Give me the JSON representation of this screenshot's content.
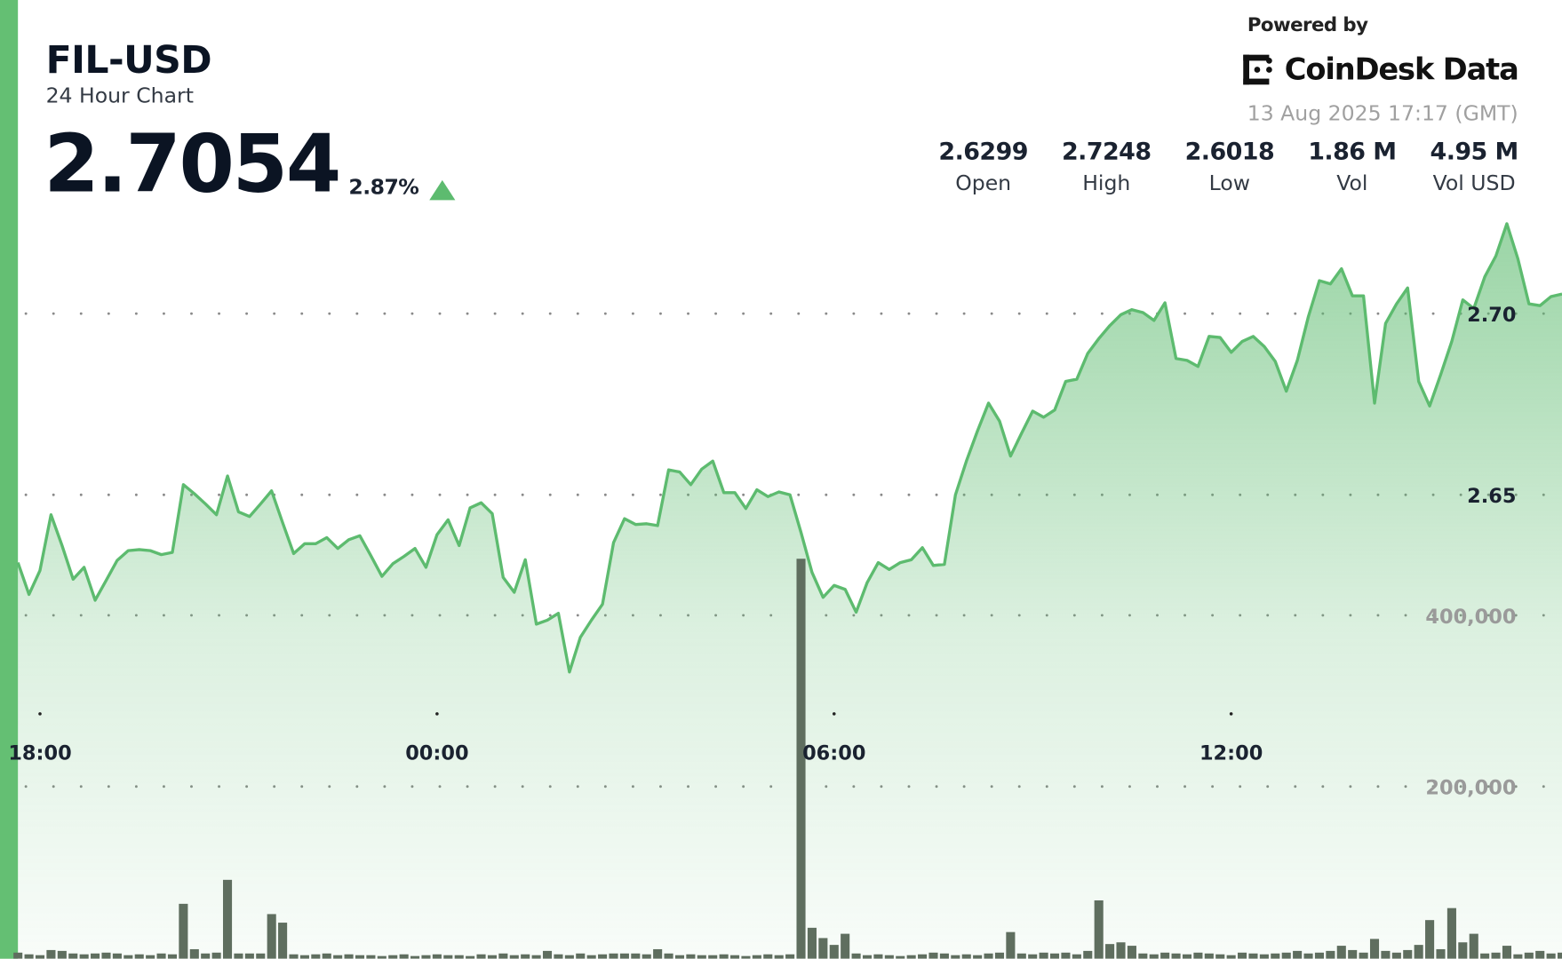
{
  "header": {
    "title": "FIL-USD",
    "subtitle": "24 Hour Chart",
    "price": "2.7054",
    "change_percent": "2.87%",
    "change_direction": "up",
    "powered_by": "Powered by",
    "brand": "CoinDesk Data",
    "timestamp": "13 Aug 2025 17:17 (GMT)"
  },
  "stats": [
    {
      "value": "2.6299",
      "label": "Open"
    },
    {
      "value": "2.7248",
      "label": "High"
    },
    {
      "value": "2.6018",
      "label": "Low"
    },
    {
      "value": "1.86 M",
      "label": "Vol"
    },
    {
      "value": "4.95 M",
      "label": "Vol USD"
    }
  ],
  "colors": {
    "accent": "#64bf73",
    "line": "#5dbb6f",
    "volume": "#5f6e5f",
    "text": "#0b1423"
  },
  "chart_data": {
    "type": "area",
    "grid": "dotted horizontal",
    "price_ticks": [
      2.7,
      2.65
    ],
    "price_tick_labels": [
      "2.70",
      "2.65"
    ],
    "volume_ticks": [
      400000,
      200000
    ],
    "volume_tick_labels": [
      "400,000",
      "200,000"
    ],
    "time_ticks": [
      "18:00",
      "00:00",
      "06:00",
      "12:00"
    ],
    "x": [
      "17:40",
      "17:50",
      "18:00",
      "18:10",
      "18:20",
      "18:30",
      "18:40",
      "18:50",
      "19:00",
      "19:10",
      "19:20",
      "19:30",
      "19:40",
      "19:50",
      "20:00",
      "20:10",
      "20:20",
      "20:30",
      "20:40",
      "20:50",
      "21:00",
      "21:10",
      "21:20",
      "21:30",
      "21:40",
      "21:50",
      "22:00",
      "22:10",
      "22:20",
      "22:30",
      "22:40",
      "22:50",
      "23:00",
      "23:10",
      "23:20",
      "23:30",
      "23:40",
      "23:50",
      "00:00",
      "00:10",
      "00:20",
      "00:30",
      "00:40",
      "00:50",
      "01:00",
      "01:10",
      "01:20",
      "01:30",
      "01:40",
      "01:50",
      "02:00",
      "02:10",
      "02:20",
      "02:30",
      "02:40",
      "02:50",
      "03:00",
      "03:10",
      "03:20",
      "03:30",
      "03:40",
      "03:50",
      "04:00",
      "04:10",
      "04:20",
      "04:30",
      "04:40",
      "04:50",
      "05:00",
      "05:10",
      "05:20",
      "05:30",
      "05:40",
      "05:50",
      "06:00",
      "06:10",
      "06:20",
      "06:30",
      "06:40",
      "06:50",
      "07:00",
      "07:10",
      "07:20",
      "07:30",
      "07:40",
      "07:50",
      "08:00",
      "08:10",
      "08:20",
      "08:30",
      "08:40",
      "08:50",
      "09:00",
      "09:10",
      "09:20",
      "09:30",
      "09:40",
      "09:50",
      "10:00",
      "10:10",
      "10:20",
      "10:30",
      "10:40",
      "10:50",
      "11:00",
      "11:10",
      "11:20",
      "11:30",
      "11:40",
      "11:50",
      "12:00",
      "12:10",
      "12:20",
      "12:30",
      "12:40",
      "12:50",
      "13:00",
      "13:10",
      "13:20",
      "13:30",
      "13:40",
      "13:50",
      "14:00",
      "14:10",
      "14:20",
      "14:30",
      "14:40",
      "14:50",
      "15:00",
      "15:10",
      "15:20",
      "15:30",
      "15:40",
      "15:50",
      "16:00",
      "16:10",
      "16:20",
      "16:30",
      "16:40",
      "16:50",
      "17:00"
    ],
    "price": [
      2.6313,
      2.6225,
      2.6291,
      2.6445,
      2.636,
      2.6267,
      2.63,
      2.6209,
      2.6264,
      2.6319,
      2.6346,
      2.6349,
      2.6346,
      2.6335,
      2.6341,
      2.6528,
      2.6503,
      2.6475,
      2.6445,
      2.6552,
      2.6453,
      2.644,
      2.6475,
      2.6511,
      2.6423,
      2.6338,
      2.6365,
      2.6365,
      2.6382,
      2.6352,
      2.6376,
      2.6387,
      2.6332,
      2.6275,
      2.631,
      2.633,
      2.6352,
      2.63,
      2.639,
      2.6431,
      2.636,
      2.6464,
      2.6478,
      2.6448,
      2.6272,
      2.6231,
      2.6321,
      2.6143,
      2.6154,
      2.6173,
      2.6011,
      2.6107,
      2.6154,
      2.6198,
      2.6368,
      2.6434,
      2.6418,
      2.642,
      2.6415,
      2.6569,
      2.6563,
      2.6528,
      2.6571,
      2.6593,
      2.6506,
      2.6506,
      2.6462,
      2.6514,
      2.6495,
      2.6508,
      2.65,
      2.6396,
      2.6286,
      2.6217,
      2.625,
      2.6239,
      2.6176,
      2.6258,
      2.6313,
      2.6294,
      2.6313,
      2.6321,
      2.6354,
      2.6305,
      2.6308,
      2.65,
      2.6593,
      2.6676,
      2.6753,
      2.6703,
      2.6607,
      2.667,
      2.6731,
      2.6714,
      2.6734,
      2.6813,
      2.6819,
      2.689,
      2.6931,
      2.6967,
      2.6997,
      2.7011,
      2.7003,
      2.6981,
      2.703,
      2.6876,
      2.6871,
      2.6854,
      2.6937,
      2.6934,
      2.6893,
      2.6923,
      2.6937,
      2.6909,
      2.6868,
      2.6786,
      2.6871,
      2.6992,
      2.7091,
      2.7082,
      2.7124,
      2.7049,
      2.7049,
      2.6753,
      2.6973,
      2.7027,
      2.7071,
      2.6813,
      2.6745,
      2.6832,
      2.6923,
      2.7038,
      2.7014,
      2.7102,
      2.7159,
      2.7248,
      2.7151,
      2.7027,
      2.7022,
      2.7047,
      2.7054
    ],
    "volume": [
      6000,
      4000,
      3000,
      9000,
      8000,
      5000,
      4000,
      5000,
      6000,
      5000,
      3000,
      4000,
      3000,
      5000,
      4000,
      63000,
      10000,
      5000,
      6000,
      91000,
      5000,
      5000,
      5000,
      51000,
      41000,
      4000,
      3000,
      4000,
      5000,
      3000,
      4000,
      3000,
      3000,
      2000,
      3000,
      4000,
      2000,
      3000,
      4000,
      3000,
      3000,
      2000,
      4000,
      3000,
      5000,
      3000,
      4000,
      3000,
      8000,
      4000,
      3000,
      5000,
      3000,
      4000,
      5000,
      5000,
      5000,
      4000,
      10000,
      5000,
      3000,
      4000,
      3000,
      3000,
      4000,
      3000,
      2000,
      3000,
      4000,
      3000,
      4000,
      466000,
      35000,
      23000,
      15000,
      28000,
      5000,
      3000,
      4000,
      3000,
      2000,
      3000,
      4000,
      6000,
      5000,
      3000,
      4000,
      3000,
      5000,
      6000,
      30000,
      5000,
      4000,
      6000,
      5000,
      6000,
      4000,
      8000,
      67000,
      16000,
      18000,
      14000,
      5000,
      4000,
      6000,
      5000,
      4000,
      6000,
      5000,
      4000,
      3000,
      6000,
      5000,
      4000,
      5000,
      6000,
      8000,
      5000,
      6000,
      8000,
      14000,
      9000,
      6000,
      22000,
      8000,
      6000,
      9000,
      15000,
      44000,
      10000,
      58000,
      18000,
      28000,
      5000,
      6000,
      14000,
      4000,
      6000,
      8000,
      5000,
      6000
    ]
  }
}
